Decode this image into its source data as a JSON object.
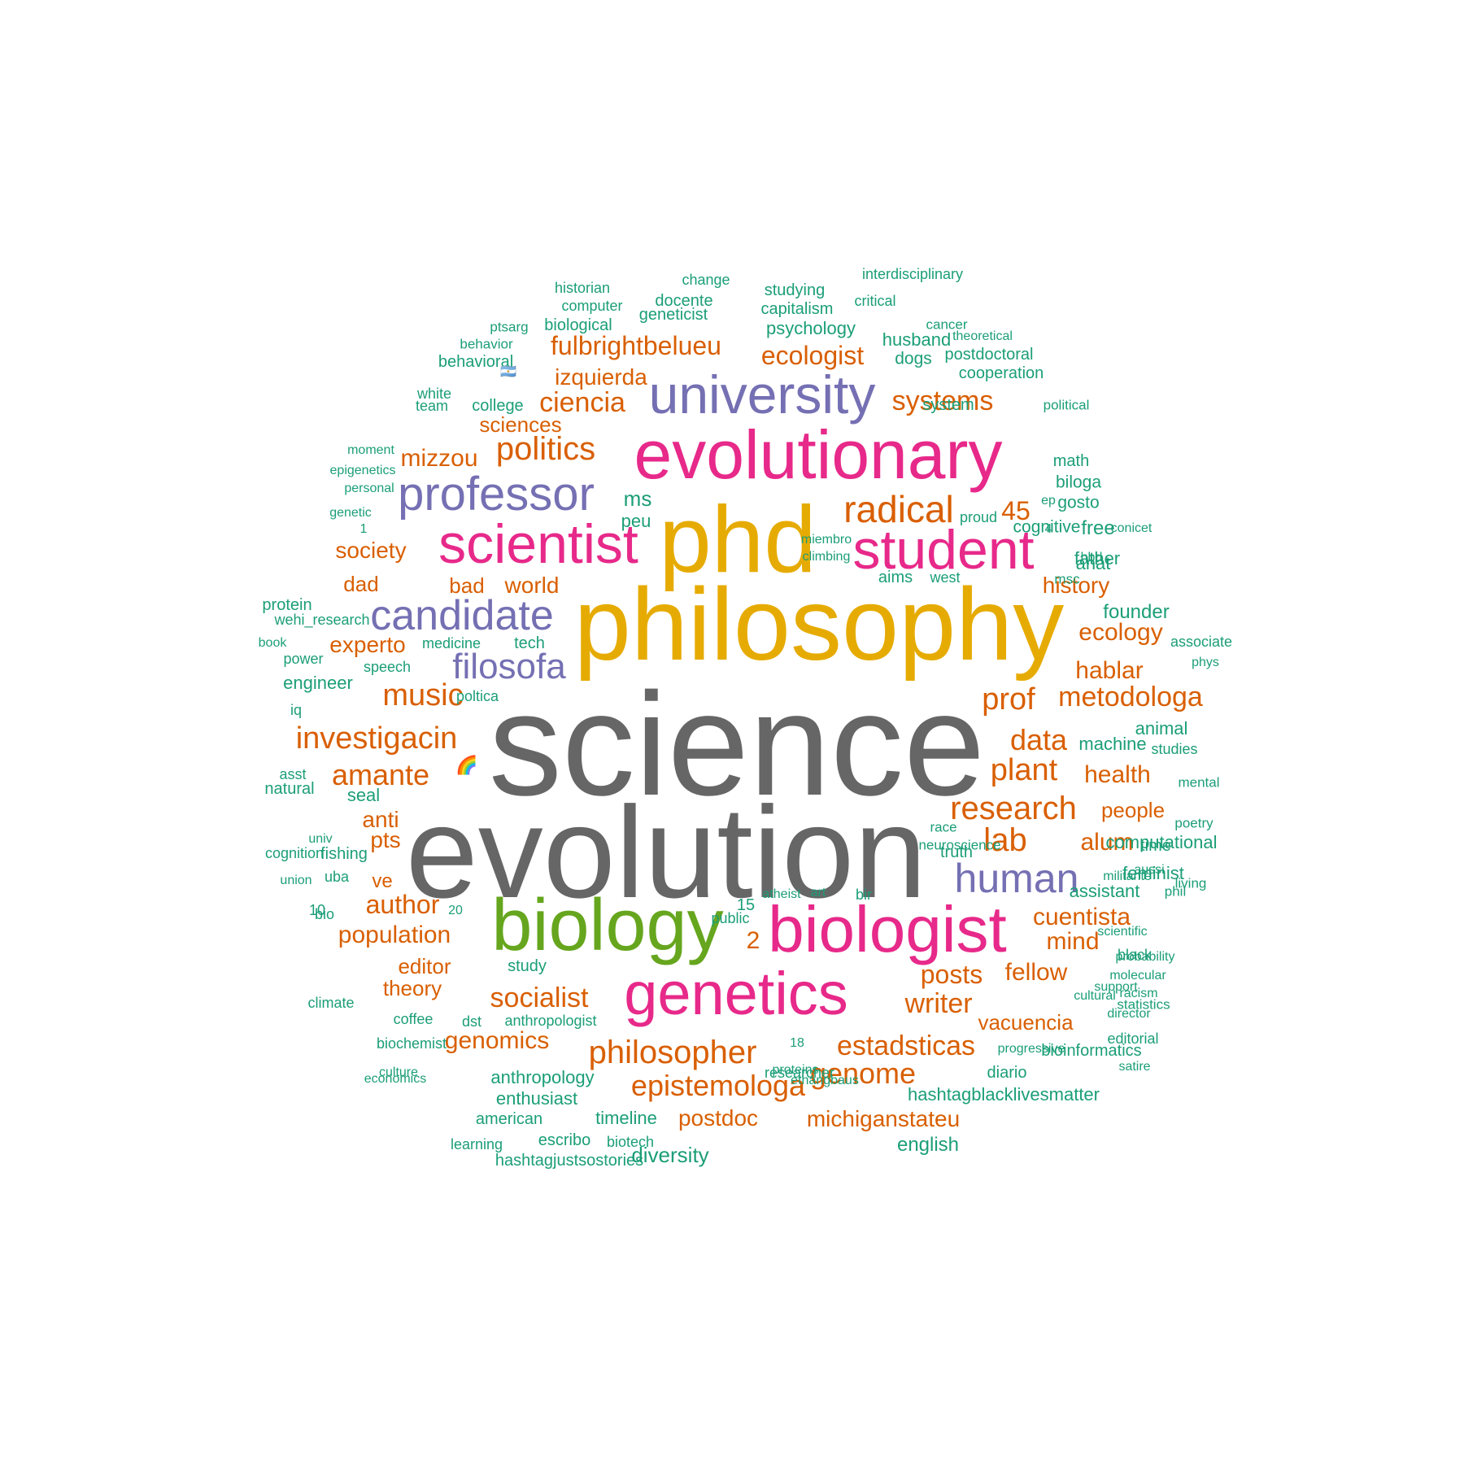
{
  "palette": {
    "grey": "#666666",
    "gold": "#E6AB02",
    "pink": "#E7298A",
    "purple": "#7570B3",
    "green": "#66A61E",
    "orange": "#D95F02",
    "teal": "#1B9E77"
  },
  "words": [
    {
      "text": "science",
      "color": "grey"
    },
    {
      "text": "evolution",
      "color": "grey"
    },
    {
      "text": "philosophy",
      "color": "gold"
    },
    {
      "text": "phd",
      "color": "gold"
    },
    {
      "text": "evolutionary",
      "color": "pink"
    },
    {
      "text": "scientist",
      "color": "pink"
    },
    {
      "text": "student",
      "color": "pink"
    },
    {
      "text": "biologist",
      "color": "pink"
    },
    {
      "text": "genetics",
      "color": "pink"
    },
    {
      "text": "biology",
      "color": "green"
    },
    {
      "text": "university",
      "color": "purple"
    },
    {
      "text": "professor",
      "color": "purple"
    },
    {
      "text": "candidate",
      "color": "purple"
    },
    {
      "text": "filosofa",
      "color": "purple"
    },
    {
      "text": "human",
      "color": "purple"
    },
    {
      "text": "radical",
      "color": "orange"
    },
    {
      "text": "politics",
      "color": "orange"
    },
    {
      "text": "ciencia",
      "color": "orange"
    },
    {
      "text": "ecologist",
      "color": "orange"
    },
    {
      "text": "systems",
      "color": "orange"
    },
    {
      "text": "fulbrightbelueu",
      "color": "orange"
    },
    {
      "text": "izquierda",
      "color": "orange"
    },
    {
      "text": "mizzou",
      "color": "orange"
    },
    {
      "text": "sciences",
      "color": "orange"
    },
    {
      "text": "society",
      "color": "orange"
    },
    {
      "text": "45",
      "color": "orange"
    },
    {
      "text": "dad",
      "color": "orange"
    },
    {
      "text": "bad",
      "color": "orange"
    },
    {
      "text": "world",
      "color": "orange"
    },
    {
      "text": "history",
      "color": "orange"
    },
    {
      "text": "experto",
      "color": "orange"
    },
    {
      "text": "ecology",
      "color": "orange"
    },
    {
      "text": "hablar",
      "color": "orange"
    },
    {
      "text": "music",
      "color": "orange"
    },
    {
      "text": "prof",
      "color": "orange"
    },
    {
      "text": "metodologa",
      "color": "orange"
    },
    {
      "text": "investigacin",
      "color": "orange"
    },
    {
      "text": "data",
      "color": "orange"
    },
    {
      "text": "amante",
      "color": "orange"
    },
    {
      "text": "plant",
      "color": "orange"
    },
    {
      "text": "health",
      "color": "orange"
    },
    {
      "text": "research",
      "color": "orange"
    },
    {
      "text": "people",
      "color": "orange"
    },
    {
      "text": "anti",
      "color": "orange"
    },
    {
      "text": "lab",
      "color": "orange"
    },
    {
      "text": "alum",
      "color": "orange"
    },
    {
      "text": "pts",
      "color": "orange"
    },
    {
      "text": "ve",
      "color": "orange"
    },
    {
      "text": "author",
      "color": "orange"
    },
    {
      "text": "cuentista",
      "color": "orange"
    },
    {
      "text": "population",
      "color": "orange"
    },
    {
      "text": "2",
      "color": "orange"
    },
    {
      "text": "mind",
      "color": "orange"
    },
    {
      "text": "editor",
      "color": "orange"
    },
    {
      "text": "posts",
      "color": "orange"
    },
    {
      "text": "fellow",
      "color": "orange"
    },
    {
      "text": "theory",
      "color": "orange"
    },
    {
      "text": "socialist",
      "color": "orange"
    },
    {
      "text": "writer",
      "color": "orange"
    },
    {
      "text": "vacuencia",
      "color": "orange"
    },
    {
      "text": "genomics",
      "color": "orange"
    },
    {
      "text": "philosopher",
      "color": "orange"
    },
    {
      "text": "estadsticas",
      "color": "orange"
    },
    {
      "text": "epistemologa",
      "color": "orange"
    },
    {
      "text": "genome",
      "color": "orange"
    },
    {
      "text": "postdoc",
      "color": "orange"
    },
    {
      "text": "michiganstateu",
      "color": "orange"
    },
    {
      "text": "🌈",
      "color": "orange"
    },
    {
      "text": "historian",
      "color": "teal"
    },
    {
      "text": "change",
      "color": "teal"
    },
    {
      "text": "interdisciplinary",
      "color": "teal"
    },
    {
      "text": "computer",
      "color": "teal"
    },
    {
      "text": "docente",
      "color": "teal"
    },
    {
      "text": "studying",
      "color": "teal"
    },
    {
      "text": "critical",
      "color": "teal"
    },
    {
      "text": "geneticist",
      "color": "teal"
    },
    {
      "text": "capitalism",
      "color": "teal"
    },
    {
      "text": "ptsarg",
      "color": "teal"
    },
    {
      "text": "biological",
      "color": "teal"
    },
    {
      "text": "psychology",
      "color": "teal"
    },
    {
      "text": "cancer",
      "color": "teal"
    },
    {
      "text": "behavior",
      "color": "teal"
    },
    {
      "text": "husband",
      "color": "teal"
    },
    {
      "text": "theoretical",
      "color": "teal"
    },
    {
      "text": "behavioral",
      "color": "teal"
    },
    {
      "text": "🇦🇷",
      "color": "teal"
    },
    {
      "text": "dogs",
      "color": "teal"
    },
    {
      "text": "postdoctoral",
      "color": "teal"
    },
    {
      "text": "cooperation",
      "color": "teal"
    },
    {
      "text": "white",
      "color": "teal"
    },
    {
      "text": "team",
      "color": "teal"
    },
    {
      "text": "college",
      "color": "teal"
    },
    {
      "text": "system",
      "color": "teal"
    },
    {
      "text": "political",
      "color": "teal"
    },
    {
      "text": "moment",
      "color": "teal"
    },
    {
      "text": "math",
      "color": "teal"
    },
    {
      "text": "epigenetics",
      "color": "teal"
    },
    {
      "text": "biloga",
      "color": "teal"
    },
    {
      "text": "personal",
      "color": "teal"
    },
    {
      "text": "gosto",
      "color": "teal"
    },
    {
      "text": "ms",
      "color": "teal"
    },
    {
      "text": "ep",
      "color": "teal"
    },
    {
      "text": "cognitive",
      "color": "teal"
    },
    {
      "text": "genetic",
      "color": "teal"
    },
    {
      "text": "free",
      "color": "teal"
    },
    {
      "text": "peu",
      "color": "teal"
    },
    {
      "text": "proud",
      "color": "teal"
    },
    {
      "text": "conicet",
      "color": "teal"
    },
    {
      "text": "1",
      "color": "teal"
    },
    {
      "text": "miembro",
      "color": "teal"
    },
    {
      "text": "4",
      "color": "teal"
    },
    {
      "text": "father",
      "color": "teal"
    },
    {
      "text": "climbing",
      "color": "teal"
    },
    {
      "text": "aims",
      "color": "teal"
    },
    {
      "text": "west",
      "color": "teal"
    },
    {
      "text": "anat",
      "color": "teal"
    },
    {
      "text": "msc",
      "color": "teal"
    },
    {
      "text": "hbd",
      "color": "teal"
    },
    {
      "text": "protein",
      "color": "teal"
    },
    {
      "text": "wehi_research",
      "color": "teal"
    },
    {
      "text": "founder",
      "color": "teal"
    },
    {
      "text": "book",
      "color": "teal"
    },
    {
      "text": "medicine",
      "color": "teal"
    },
    {
      "text": "tech",
      "color": "teal"
    },
    {
      "text": "associate",
      "color": "teal"
    },
    {
      "text": "power",
      "color": "teal"
    },
    {
      "text": "phys",
      "color": "teal"
    },
    {
      "text": "speech",
      "color": "teal"
    },
    {
      "text": "engineer",
      "color": "teal"
    },
    {
      "text": "poltica",
      "color": "teal"
    },
    {
      "text": "iq",
      "color": "teal"
    },
    {
      "text": "animal",
      "color": "teal"
    },
    {
      "text": "machine",
      "color": "teal"
    },
    {
      "text": "studies",
      "color": "teal"
    },
    {
      "text": "asst",
      "color": "teal"
    },
    {
      "text": "mental",
      "color": "teal"
    },
    {
      "text": "seal",
      "color": "teal"
    },
    {
      "text": "natural",
      "color": "teal"
    },
    {
      "text": "poetry",
      "color": "teal"
    },
    {
      "text": "race",
      "color": "teal"
    },
    {
      "text": "computational",
      "color": "teal"
    },
    {
      "text": "neuroscience",
      "color": "teal"
    },
    {
      "text": "univ",
      "color": "teal"
    },
    {
      "text": "cognition",
      "color": "teal"
    },
    {
      "text": "union",
      "color": "teal"
    },
    {
      "text": "fishing",
      "color": "teal"
    },
    {
      "text": "truth",
      "color": "teal"
    },
    {
      "text": "time",
      "color": "teal"
    },
    {
      "text": "living",
      "color": "teal"
    },
    {
      "text": "feminist",
      "color": "teal"
    },
    {
      "text": "militante",
      "color": "teal"
    },
    {
      "text": "uba",
      "color": "teal"
    },
    {
      "text": "phil",
      "color": "teal"
    },
    {
      "text": "atheist",
      "color": "teal"
    },
    {
      "text": "art",
      "color": "teal"
    },
    {
      "text": "bir",
      "color": "teal"
    },
    {
      "text": "assistant",
      "color": "teal"
    },
    {
      "text": "bio",
      "color": "teal"
    },
    {
      "text": "aussi",
      "color": "teal"
    },
    {
      "text": "20",
      "color": "teal"
    },
    {
      "text": "10",
      "color": "teal"
    },
    {
      "text": "15",
      "color": "teal"
    },
    {
      "text": "scientific",
      "color": "teal"
    },
    {
      "text": "public",
      "color": "teal"
    },
    {
      "text": "black",
      "color": "teal"
    },
    {
      "text": "support",
      "color": "teal"
    },
    {
      "text": "statistics",
      "color": "teal"
    },
    {
      "text": "cultural",
      "color": "teal"
    },
    {
      "text": "study",
      "color": "teal"
    },
    {
      "text": "probability",
      "color": "teal"
    },
    {
      "text": "molecular",
      "color": "teal"
    },
    {
      "text": "racism",
      "color": "teal"
    },
    {
      "text": "director",
      "color": "teal"
    },
    {
      "text": "climate",
      "color": "teal"
    },
    {
      "text": "editorial",
      "color": "teal"
    },
    {
      "text": "coffee",
      "color": "teal"
    },
    {
      "text": "dst",
      "color": "teal"
    },
    {
      "text": "anthropologist",
      "color": "teal"
    },
    {
      "text": "satire",
      "color": "teal"
    },
    {
      "text": "progressive",
      "color": "teal"
    },
    {
      "text": "biochemist",
      "color": "teal"
    },
    {
      "text": "18",
      "color": "teal"
    },
    {
      "text": "bioinformatics",
      "color": "teal"
    },
    {
      "text": "economics",
      "color": "teal"
    },
    {
      "text": "researcher",
      "color": "teal"
    },
    {
      "text": "ethangbaus",
      "color": "teal"
    },
    {
      "text": "culture",
      "color": "teal"
    },
    {
      "text": "anthropology",
      "color": "teal"
    },
    {
      "text": "proteins",
      "color": "teal"
    },
    {
      "text": "diario",
      "color": "teal"
    },
    {
      "text": "enthusiast",
      "color": "teal"
    },
    {
      "text": "hashtagblacklivesmatter",
      "color": "teal"
    },
    {
      "text": "american",
      "color": "teal"
    },
    {
      "text": "timeline",
      "color": "teal"
    },
    {
      "text": "learning",
      "color": "teal"
    },
    {
      "text": "escribo",
      "color": "teal"
    },
    {
      "text": "biotech",
      "color": "teal"
    },
    {
      "text": "diversity",
      "color": "teal"
    },
    {
      "text": "english",
      "color": "teal"
    },
    {
      "text": "hashtagjustsostories",
      "color": "teal"
    }
  ]
}
